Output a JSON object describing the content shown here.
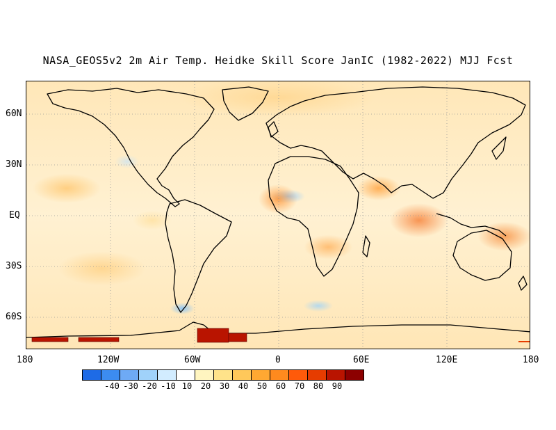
{
  "title": "NASA_GEOS5v2 2m Air Temp. Heidke Skill Score JanIC (1982-2022) MJJ Fcst",
  "y_axis_labels": [
    "60N",
    "30N",
    "EQ",
    "30S",
    "60S"
  ],
  "x_axis_labels": [
    "180",
    "120W",
    "60W",
    "0",
    "60E",
    "120E",
    "180"
  ],
  "colorbar": {
    "labels": [
      "-40",
      "-30",
      "-20",
      "-10",
      "10",
      "20",
      "30",
      "40",
      "50",
      "60",
      "70",
      "80",
      "90"
    ],
    "colors": [
      "#1e6be6",
      "#3c8cf0",
      "#6eaaf5",
      "#a0d2fa",
      "#d2ecff",
      "#ffffff",
      "#fff5c0",
      "#ffe38a",
      "#ffc85a",
      "#ffa832",
      "#ff8a1e",
      "#ff5a0a",
      "#e63c00",
      "#b91400",
      "#8c0000"
    ]
  }
}
